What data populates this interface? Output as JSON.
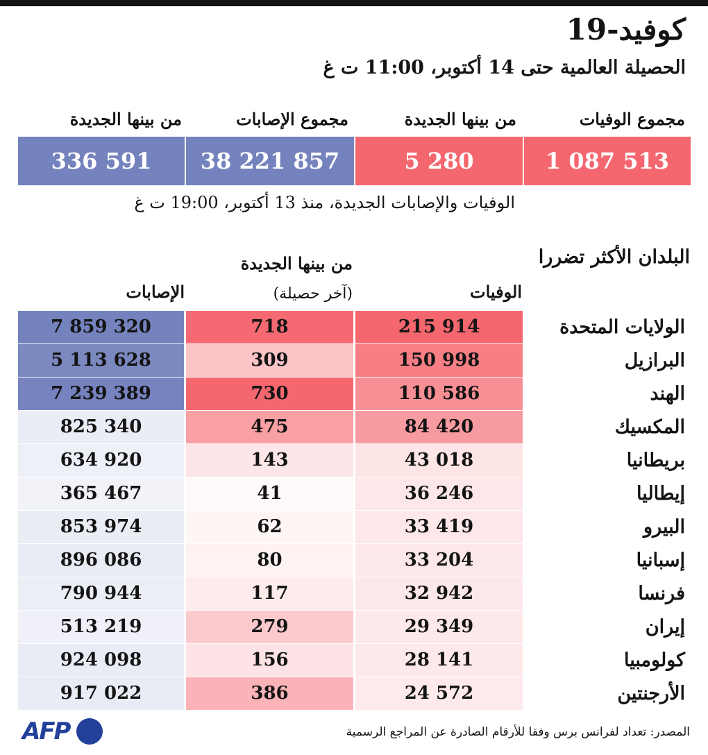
{
  "title": "كوفيد-19",
  "subtitle": "الحصيلة العالمية حتى 14 أكتوبر، 11:00 ت غ",
  "summary": {
    "deaths_label": "مجموع الوفيات",
    "new_deaths_label": "من بينها الجديدة",
    "cases_label": "مجموع الإصابات",
    "new_cases_label": "من بينها الجديدة",
    "deaths_value": "1 087 513",
    "new_deaths_value": "5 280",
    "cases_value": "38 221 857",
    "new_cases_value": "336 591",
    "note": "الوفيات والإصابات الجديدة، منذ 13 أكتوبر، 19:00 ت غ"
  },
  "table": {
    "section_title": "البلدان الأكثر تضررا",
    "col_deaths": "الوفيات",
    "col_new": "من بينها الجديدة",
    "col_new_sub": "(آخر حصيلة)",
    "col_cases": "الإصابات"
  },
  "colors": {
    "red": "#f5676f",
    "blue": "#7482bd"
  },
  "source": "المصدر: تعداد لفرانس برس وفقا للأرقام الصادرة عن المراجع الرسمية",
  "logo": "AFP",
  "chart_data": {
    "type": "table",
    "columns": [
      "الوفيات",
      "من بينها الجديدة",
      "الإصابات"
    ],
    "rows": [
      {
        "country": "الولايات المتحدة",
        "deaths": "215 914",
        "new_deaths": "718",
        "cases": "7 859 320",
        "deaths_num": 215914,
        "new_num": 718,
        "cases_num": 7859320
      },
      {
        "country": "البرازيل",
        "deaths": "150 998",
        "new_deaths": "309",
        "cases": "5 113 628",
        "deaths_num": 150998,
        "new_num": 309,
        "cases_num": 5113628
      },
      {
        "country": "الهند",
        "deaths": "110 586",
        "new_deaths": "730",
        "cases": "7 239 389",
        "deaths_num": 110586,
        "new_num": 730,
        "cases_num": 7239389
      },
      {
        "country": "المكسيك",
        "deaths": "84 420",
        "new_deaths": "475",
        "cases": "825 340",
        "deaths_num": 84420,
        "new_num": 475,
        "cases_num": 825340
      },
      {
        "country": "بريطانيا",
        "deaths": "43 018",
        "new_deaths": "143",
        "cases": "634 920",
        "deaths_num": 43018,
        "new_num": 143,
        "cases_num": 634920
      },
      {
        "country": "إيطاليا",
        "deaths": "36 246",
        "new_deaths": "41",
        "cases": "365 467",
        "deaths_num": 36246,
        "new_num": 41,
        "cases_num": 365467
      },
      {
        "country": "البيرو",
        "deaths": "33 419",
        "new_deaths": "62",
        "cases": "853 974",
        "deaths_num": 33419,
        "new_num": 62,
        "cases_num": 853974
      },
      {
        "country": "إسبانيا",
        "deaths": "33 204",
        "new_deaths": "80",
        "cases": "896 086",
        "deaths_num": 33204,
        "new_num": 80,
        "cases_num": 896086
      },
      {
        "country": "فرنسا",
        "deaths": "32 942",
        "new_deaths": "117",
        "cases": "790 944",
        "deaths_num": 32942,
        "new_num": 117,
        "cases_num": 790944
      },
      {
        "country": "إيران",
        "deaths": "29 349",
        "new_deaths": "279",
        "cases": "513 219",
        "deaths_num": 29349,
        "new_num": 279,
        "cases_num": 513219
      },
      {
        "country": "كولومبيا",
        "deaths": "28 141",
        "new_deaths": "156",
        "cases": "924 098",
        "deaths_num": 28141,
        "new_num": 156,
        "cases_num": 924098
      },
      {
        "country": "الأرجنتين",
        "deaths": "24 572",
        "new_deaths": "386",
        "cases": "917 022",
        "deaths_num": 24572,
        "new_num": 386,
        "cases_num": 917022
      }
    ]
  }
}
